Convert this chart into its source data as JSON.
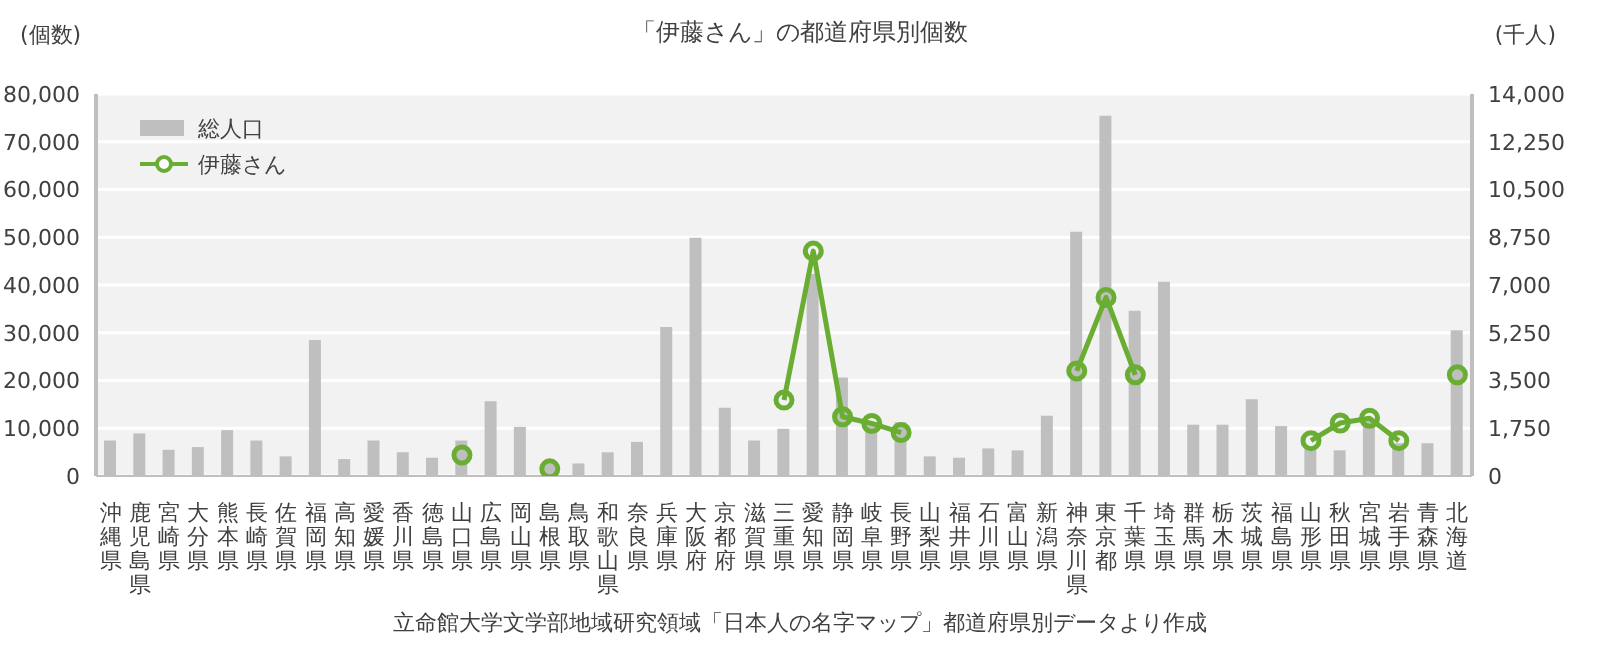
{
  "chart_data": {
    "type": "bar",
    "title": "「伊藤さん」の都道府県別個数",
    "ylabel": "(個数)",
    "y2label": "(千人)",
    "categories": [
      "沖縄県",
      "鹿児島県",
      "宮崎県",
      "大分県",
      "熊本県",
      "長崎県",
      "佐賀県",
      "福岡県",
      "高知県",
      "愛媛県",
      "香川県",
      "徳島県",
      "山口県",
      "広島県",
      "岡山県",
      "島根県",
      "鳥取県",
      "和歌山県",
      "奈良県",
      "兵庫県",
      "大阪府",
      "京都府",
      "滋賀県",
      "三重県",
      "愛知県",
      "静岡県",
      "岐阜県",
      "長野県",
      "山梨県",
      "福井県",
      "石川県",
      "富山県",
      "新潟県",
      "神奈川県",
      "東京都",
      "千葉県",
      "埼玉県",
      "群馬県",
      "栃木県",
      "茨城県",
      "福島県",
      "山形県",
      "秋田県",
      "宮城県",
      "岩手県",
      "青森県",
      "北海道"
    ],
    "series": [
      {
        "name": "総人口",
        "axis": "y2",
        "color": "#bfbfbf",
        "values": [
          1300,
          1560,
          960,
          1060,
          1680,
          1300,
          720,
          4980,
          620,
          1300,
          870,
          670,
          1300,
          2740,
          1800,
          530,
          460,
          870,
          1250,
          5460,
          8730,
          2500,
          1300,
          1730,
          7400,
          3610,
          1970,
          1970,
          720,
          670,
          1010,
          940,
          2210,
          8950,
          13200,
          6060,
          7120,
          1880,
          1880,
          2810,
          1830,
          1050,
          940,
          2100,
          1200,
          1200,
          5340
        ]
      },
      {
        "name": "伊藤さん",
        "type": "line",
        "color": "#6aad33",
        "marker": "circle",
        "values": [
          null,
          null,
          null,
          null,
          null,
          null,
          null,
          null,
          null,
          null,
          null,
          null,
          4400,
          null,
          null,
          1500,
          null,
          null,
          null,
          null,
          null,
          null,
          null,
          15900,
          47100,
          12400,
          11000,
          9100,
          null,
          null,
          null,
          null,
          null,
          22000,
          37400,
          21200,
          null,
          null,
          null,
          null,
          null,
          7400,
          11100,
          12100,
          7400,
          null,
          21200
        ]
      }
    ],
    "ylim": [
      0,
      80000
    ],
    "yticks": [
      {
        "value": 0,
        "label": "0"
      },
      {
        "value": 10000,
        "label": "10,000"
      },
      {
        "value": 20000,
        "label": "20,000"
      },
      {
        "value": 30000,
        "label": "30,000"
      },
      {
        "value": 40000,
        "label": "40,000"
      },
      {
        "value": 50000,
        "label": "50,000"
      },
      {
        "value": 60000,
        "label": "60,000"
      },
      {
        "value": 70000,
        "label": "70,000"
      },
      {
        "value": 80000,
        "label": "80,000"
      }
    ],
    "y2lim": [
      0,
      14000
    ],
    "y2ticks": [
      {
        "value": 0,
        "label": "0"
      },
      {
        "value": 1750,
        "label": "1,750"
      },
      {
        "value": 3500,
        "label": "3,500"
      },
      {
        "value": 5250,
        "label": "5,250"
      },
      {
        "value": 7000,
        "label": "7,000"
      },
      {
        "value": 8750,
        "label": "8,750"
      },
      {
        "value": 10500,
        "label": "10,500"
      },
      {
        "value": 12250,
        "label": "12,250"
      },
      {
        "value": 14000,
        "label": "14,000"
      }
    ],
    "grid": "y",
    "legend": "top left",
    "annotations": [
      "立命館大学文学部地域研究領域「日本人の名字マップ」都道府県別データより作成"
    ]
  }
}
